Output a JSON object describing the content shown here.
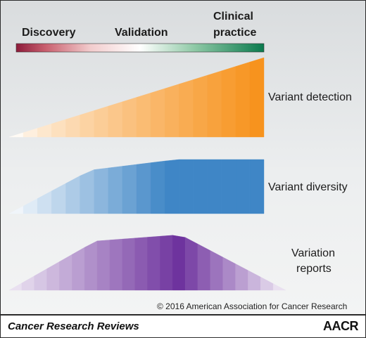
{
  "stages": {
    "discovery": "Discovery",
    "validation": "Validation",
    "clinical_line1": "Clinical",
    "clinical_line2": "practice"
  },
  "scale_colors": [
    "#8d1b3a",
    "#ffffff",
    "#0a7a4e"
  ],
  "rows": [
    {
      "label_line1": "Variant detection",
      "label_line2": "",
      "color_from": "#ffffff",
      "color_to": "#f7931e"
    },
    {
      "label_line1": "Variant diversity",
      "label_line2": "",
      "color_from": "#ffffff",
      "color_to": "#3f86c6"
    },
    {
      "label_line1": "Variation",
      "label_line2": "reports",
      "color_from": "#ffffff",
      "color_to": "#6e339e"
    }
  ],
  "copyright": "© 2016 American Association for Cancer Research",
  "footer": {
    "journal": "Cancer Research Reviews",
    "publisher": "AACR"
  }
}
